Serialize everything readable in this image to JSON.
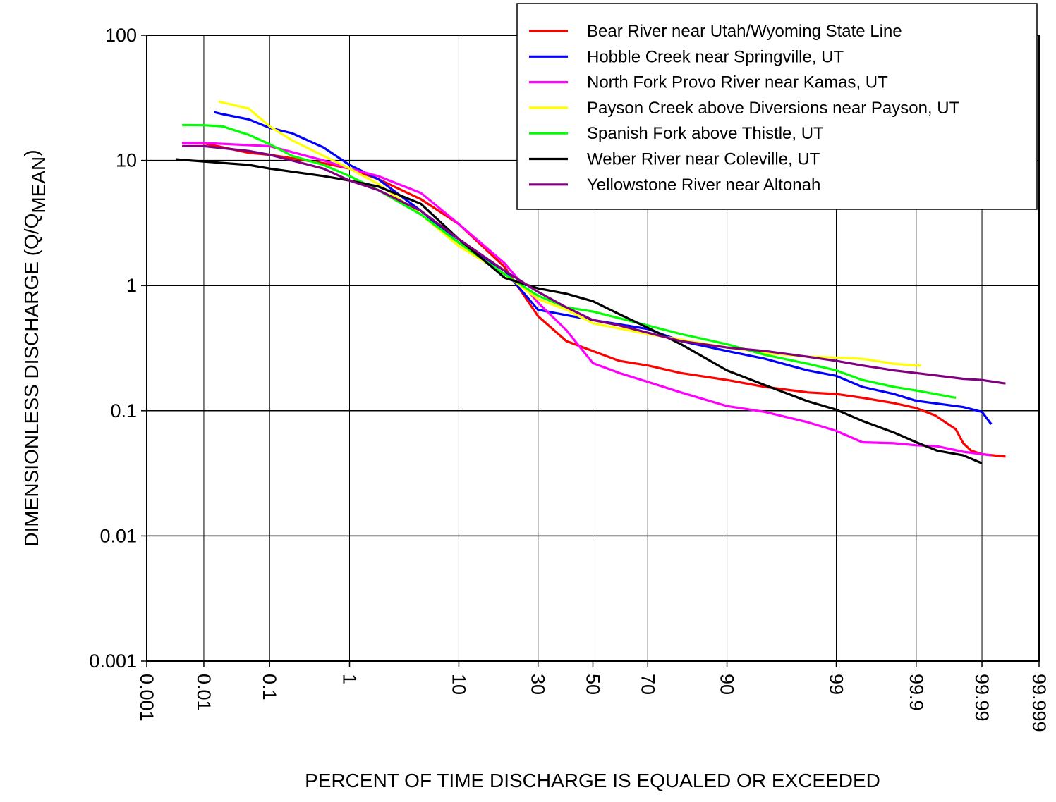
{
  "chart_data": {
    "type": "line",
    "xscale": "probability",
    "yscale": "log",
    "grid": true,
    "legend": "upper right",
    "xlabel": "PERCENT OF TIME DISCHARGE IS EQUALED OR EXCEEDED",
    "ylabel": {
      "main": "DIMENSIONLESS DISCHARGE (Q/Q",
      "sub": "MEAN",
      "close": ")"
    },
    "xlim": [
      0.001,
      99.999
    ],
    "xticks": [
      0.001,
      0.01,
      0.1,
      1,
      10,
      30,
      50,
      70,
      90,
      99,
      99.9,
      99.99,
      99.999
    ],
    "ylim": [
      0.001,
      100
    ],
    "yticks": [
      0.001,
      0.01,
      0.1,
      1,
      10,
      100
    ],
    "series": [
      {
        "name": "Bear River near Utah/Wyoming State Line",
        "color": "#ff0000",
        "x": [
          0.0043,
          0.01,
          0.05,
          0.1,
          0.5,
          1,
          2,
          5,
          10,
          20,
          30,
          40,
          50,
          60,
          70,
          80,
          90,
          95,
          98,
          99,
          99.5,
          99.8,
          99.9,
          99.946,
          99.974,
          99.98,
          99.985,
          99.99,
          99.996
        ],
        "values": [
          13.8,
          13.7,
          11.5,
          11.1,
          9.5,
          8.6,
          7.1,
          4.9,
          3.1,
          1.4,
          0.57,
          0.36,
          0.3,
          0.25,
          0.23,
          0.2,
          0.176,
          0.155,
          0.14,
          0.136,
          0.127,
          0.115,
          0.105,
          0.092,
          0.071,
          0.055,
          0.048,
          0.045,
          0.043
        ]
      },
      {
        "name": "Hobble Creek near Springville, UT",
        "color": "#0000ff",
        "x": [
          0.0146,
          0.02,
          0.05,
          0.1,
          0.2,
          0.5,
          1,
          2,
          5,
          10,
          20,
          30,
          40,
          50,
          70,
          80,
          90,
          95,
          98,
          99,
          99.5,
          99.8,
          99.9,
          99.98,
          99.99,
          99.993
        ],
        "values": [
          24.3,
          23.4,
          21.3,
          18.2,
          16.5,
          12.7,
          9.2,
          7.1,
          3.95,
          2.2,
          1.31,
          0.64,
          0.58,
          0.53,
          0.45,
          0.36,
          0.3,
          0.26,
          0.21,
          0.19,
          0.155,
          0.136,
          0.12,
          0.107,
          0.098,
          0.078
        ]
      },
      {
        "name": "North Fork Provo River near Kamas, UT",
        "color": "#ff00ff",
        "x": [
          0.0043,
          0.01,
          0.1,
          0.5,
          1,
          2,
          5,
          10,
          20,
          30,
          40,
          50,
          60,
          70,
          80,
          90,
          95,
          98,
          99,
          99.5,
          99.8,
          99.9,
          99.95,
          99.98,
          99.99,
          99.993
        ],
        "values": [
          13.8,
          13.8,
          13.0,
          10,
          8.6,
          7.5,
          5.5,
          3.1,
          1.5,
          0.73,
          0.44,
          0.24,
          0.2,
          0.17,
          0.14,
          0.109,
          0.098,
          0.081,
          0.069,
          0.056,
          0.055,
          0.053,
          0.052,
          0.047,
          0.045,
          0.044
        ]
      },
      {
        "name": "Payson Creek above Diversions near Payson, UT",
        "color": "#ffff00",
        "x": [
          0.0174,
          0.02,
          0.05,
          0.1,
          0.2,
          0.5,
          1,
          2,
          5,
          10,
          20,
          30,
          40,
          50,
          70,
          80,
          90,
          95,
          98,
          99,
          99.5,
          99.8,
          99.9,
          99.915
        ],
        "values": [
          29.5,
          29,
          26,
          18.7,
          14.5,
          10.9,
          8.6,
          6.5,
          3.7,
          2.07,
          1.23,
          0.78,
          0.64,
          0.5,
          0.41,
          0.37,
          0.32,
          0.29,
          0.27,
          0.266,
          0.26,
          0.237,
          0.23,
          0.23
        ]
      },
      {
        "name": "Spanish Fork above Thistle, UT",
        "color": "#00ff00",
        "x": [
          0.0043,
          0.01,
          0.02,
          0.05,
          0.1,
          0.2,
          0.5,
          1,
          2,
          5,
          10,
          20,
          30,
          40,
          50,
          70,
          80,
          90,
          95,
          98,
          99,
          99.5,
          99.8,
          99.9,
          99.974
        ],
        "values": [
          19.2,
          19.1,
          18.7,
          16,
          13.5,
          10.9,
          9.2,
          7.5,
          5.8,
          3.7,
          2.2,
          1.23,
          0.83,
          0.67,
          0.62,
          0.48,
          0.41,
          0.34,
          0.28,
          0.237,
          0.21,
          0.176,
          0.155,
          0.145,
          0.127
        ]
      },
      {
        "name": "Weber River near Coleville, UT",
        "color": "#000000",
        "x": [
          0.0034,
          0.01,
          0.05,
          0.1,
          0.5,
          1,
          2,
          5,
          10,
          20,
          30,
          40,
          50,
          60,
          70,
          80,
          90,
          95,
          98,
          99,
          99.5,
          99.8,
          99.9,
          99.95,
          99.98,
          99.99
        ],
        "values": [
          10.2,
          9.8,
          9.2,
          8.6,
          7.5,
          6.9,
          6.2,
          4.5,
          2.35,
          1.15,
          0.95,
          0.86,
          0.75,
          0.59,
          0.46,
          0.34,
          0.21,
          0.16,
          0.119,
          0.102,
          0.083,
          0.067,
          0.056,
          0.048,
          0.044,
          0.038
        ]
      },
      {
        "name": "Yellowstone River near Altonah",
        "color": "#800080",
        "x": [
          0.0043,
          0.01,
          0.05,
          0.1,
          0.5,
          1,
          2,
          5,
          10,
          20,
          30,
          40,
          50,
          60,
          70,
          80,
          90,
          95,
          98,
          99,
          99.5,
          99.8,
          99.9,
          99.98,
          99.99,
          99.996
        ],
        "values": [
          13.0,
          13.0,
          11.9,
          11.1,
          8.6,
          6.9,
          5.8,
          3.95,
          2.35,
          1.31,
          0.89,
          0.67,
          0.53,
          0.48,
          0.42,
          0.36,
          0.32,
          0.3,
          0.27,
          0.25,
          0.23,
          0.21,
          0.2,
          0.18,
          0.176,
          0.165
        ]
      }
    ]
  }
}
